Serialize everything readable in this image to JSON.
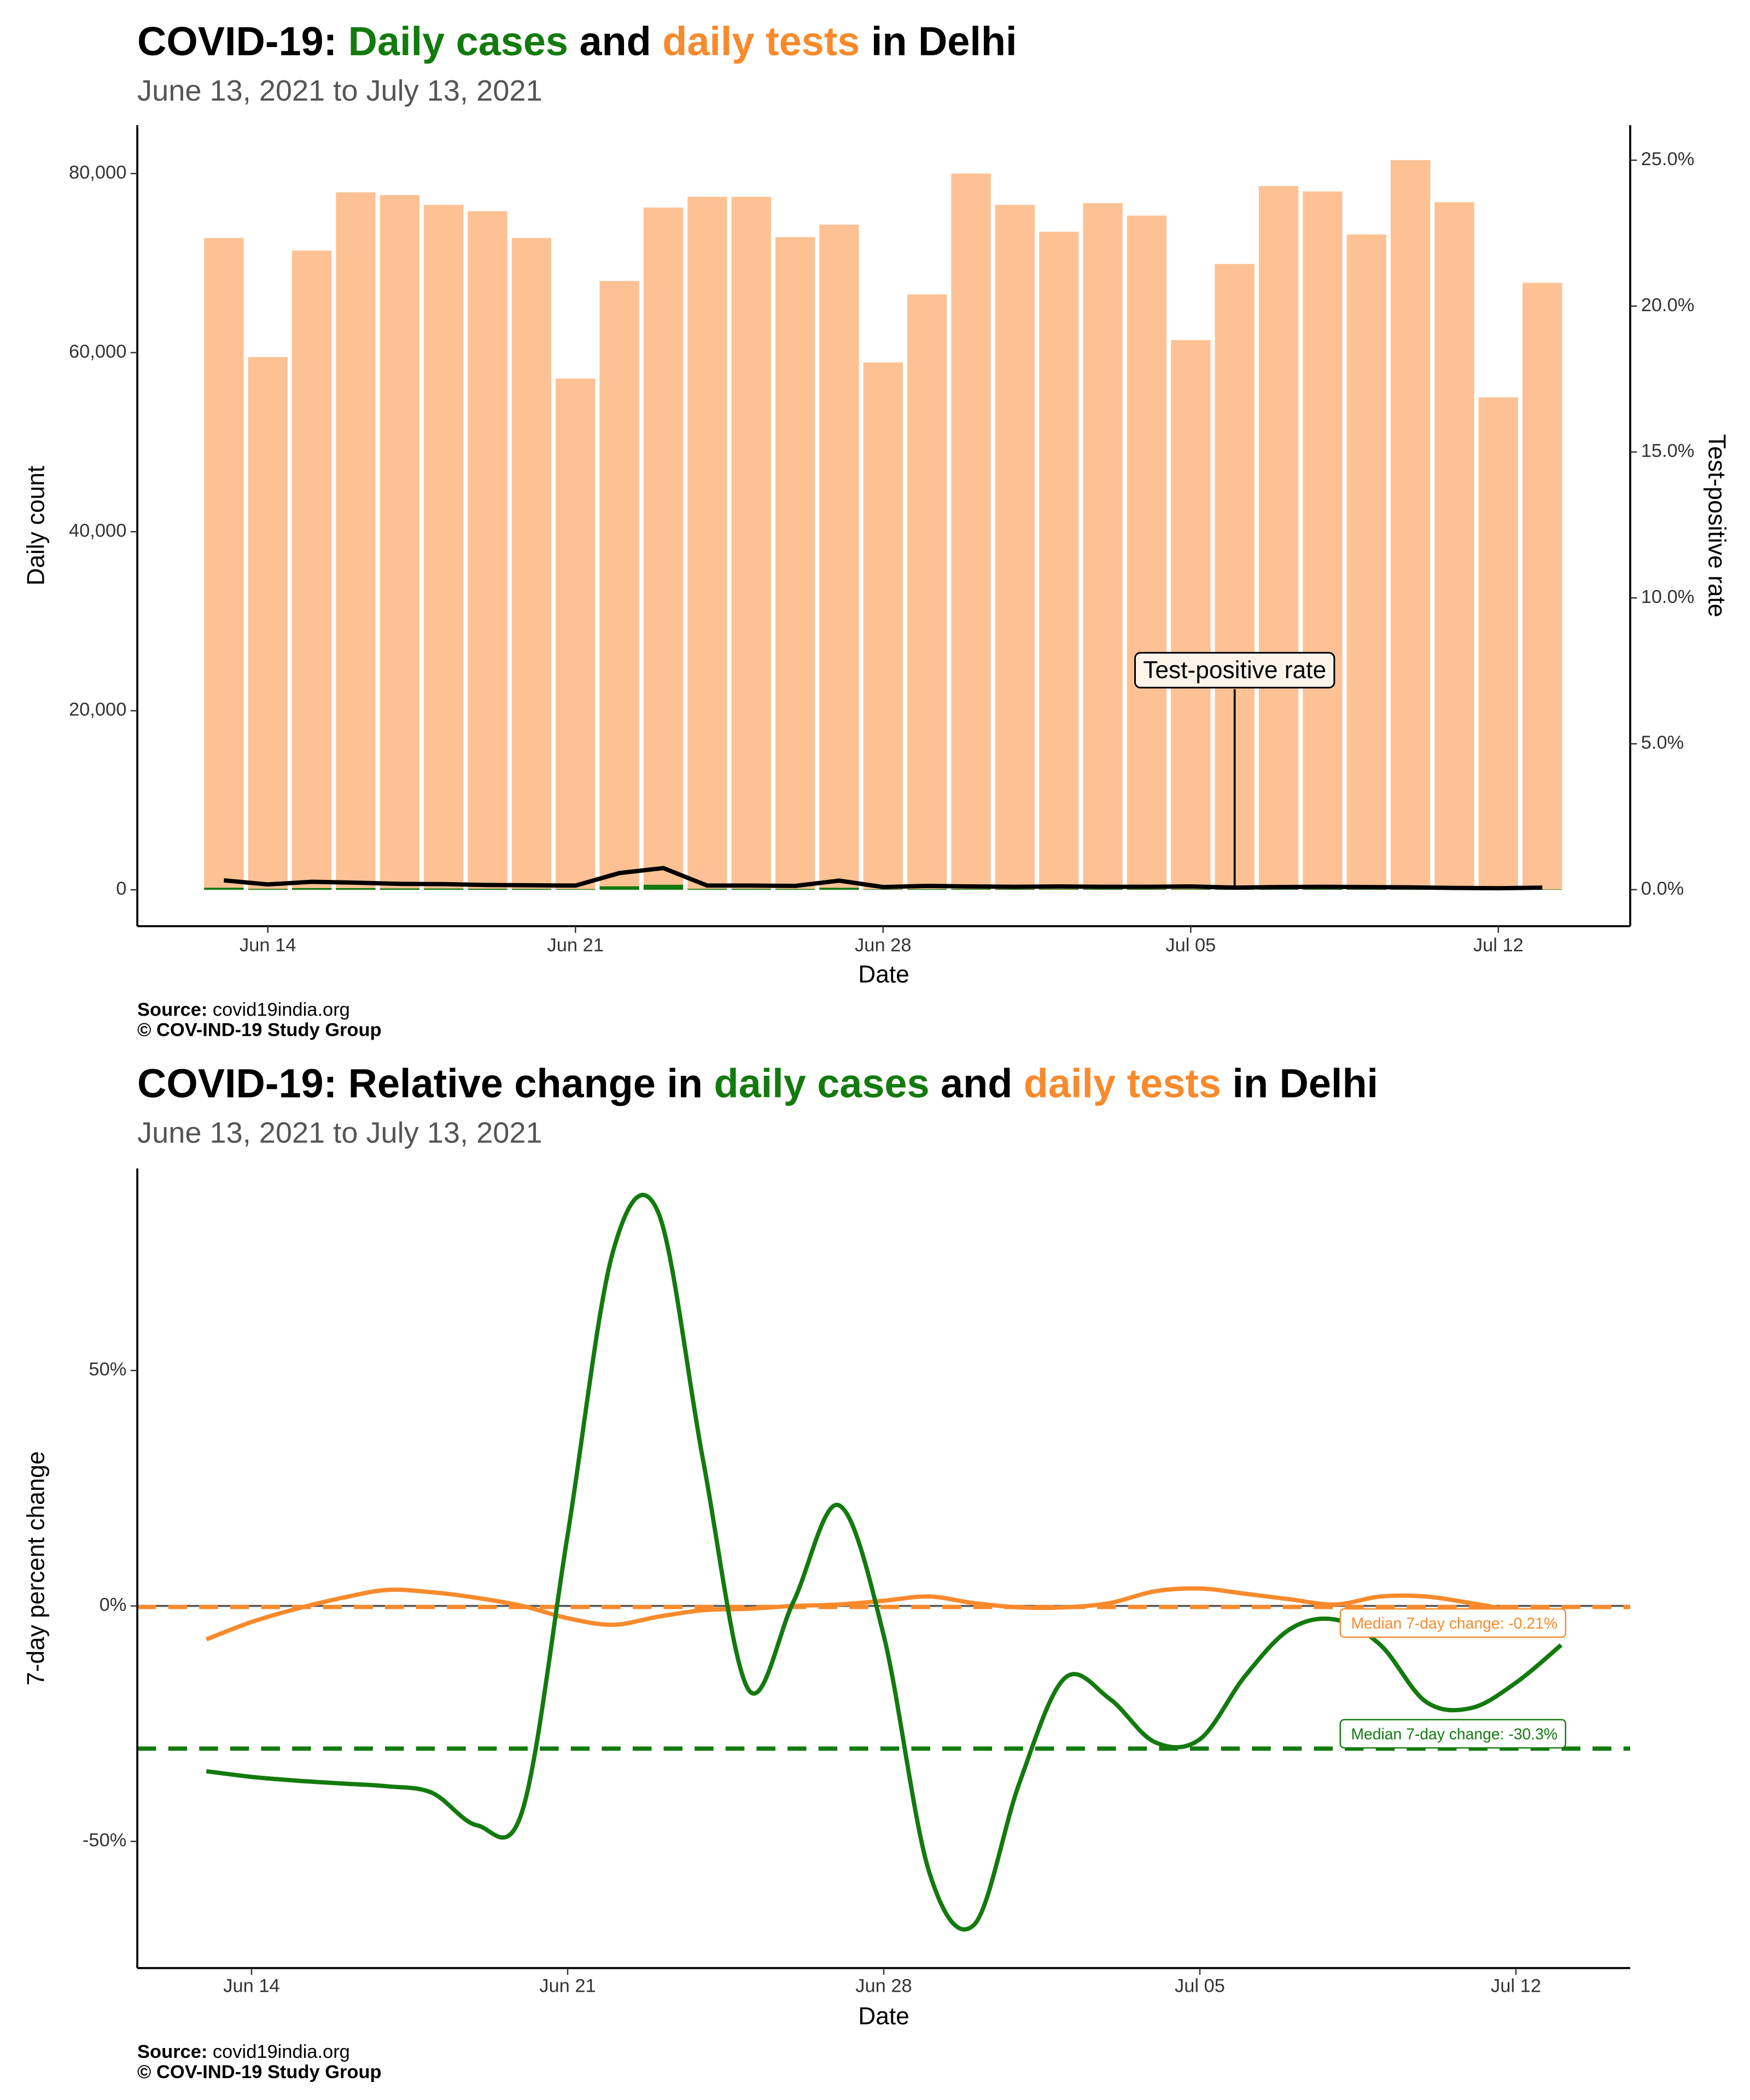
{
  "chart_data": [
    {
      "type": "bar",
      "title": [
        {
          "text": "COVID-19: ",
          "color": "#000000"
        },
        {
          "text": "Daily cases",
          "color": "#137a0e"
        },
        {
          "text": " and ",
          "color": "#000000"
        },
        {
          "text": "daily tests",
          "color": "#f88a2c"
        },
        {
          "text": " in Delhi",
          "color": "#000000"
        }
      ],
      "subtitle": "June 13, 2021 to July 13, 2021",
      "x_label": "Date",
      "y_label": "Daily count",
      "y2_label": "Test-positive rate",
      "source_label": "Source:",
      "source": "covid19india.org",
      "credit": "© COV-IND-19 Study Group",
      "x": [
        "2021-06-13",
        "2021-06-14",
        "2021-06-15",
        "2021-06-16",
        "2021-06-17",
        "2021-06-18",
        "2021-06-19",
        "2021-06-20",
        "2021-06-21",
        "2021-06-22",
        "2021-06-23",
        "2021-06-24",
        "2021-06-25",
        "2021-06-26",
        "2021-06-27",
        "2021-06-28",
        "2021-06-29",
        "2021-06-30",
        "2021-07-01",
        "2021-07-02",
        "2021-07-03",
        "2021-07-04",
        "2021-07-05",
        "2021-07-06",
        "2021-07-07",
        "2021-07-08",
        "2021-07-09",
        "2021-07-10",
        "2021-07-11",
        "2021-07-12",
        "2021-07-13"
      ],
      "xlim": [
        "2021-06-11T00:43Z",
        "2021-07-15T00:00Z"
      ],
      "xticks": [
        {
          "value": "2021-06-14",
          "label": "Jun 14"
        },
        {
          "value": "2021-06-21",
          "label": "Jun 21"
        },
        {
          "value": "2021-06-28",
          "label": "Jun 28"
        },
        {
          "value": "2021-07-05",
          "label": "Jul 05"
        },
        {
          "value": "2021-07-12",
          "label": "Jul 12"
        }
      ],
      "ylim": [
        -4060,
        85400
      ],
      "yticks": [
        0,
        {
          "value": 20000,
          "label": "20,000"
        },
        {
          "value": 40000,
          "label": "40,000"
        },
        {
          "value": 60000,
          "label": "60,000"
        },
        {
          "value": 80000,
          "label": "80,000"
        }
      ],
      "y2lim": [
        -1.25,
        26.2
      ],
      "y2ticks": [
        {
          "value": 0,
          "label": "0.0%"
        },
        {
          "value": 5,
          "label": "5.0%"
        },
        {
          "value": 10,
          "label": "10.0%"
        },
        {
          "value": 15,
          "label": "15.0%"
        },
        {
          "value": 20,
          "label": "20.0%"
        },
        {
          "value": 25,
          "label": "25.0%"
        }
      ],
      "series": [
        {
          "type": "bar",
          "color": "#fdc193",
          "values": [
            72800,
            59500,
            71400,
            77900,
            77600,
            76500,
            75800,
            72800,
            57100,
            68000,
            76200,
            77400,
            77400,
            72900,
            74300,
            58900,
            66500,
            80000,
            76500,
            73500,
            76700,
            75300,
            61400,
            69900,
            78600,
            78000,
            73200,
            81500,
            76800,
            55000,
            67800
          ]
        },
        {
          "type": "bar",
          "color": "#137a0e",
          "values": [
            233,
            107,
            193,
            187,
            155,
            145,
            121,
            109,
            80,
            388,
            564,
            108,
            108,
            95,
            230,
            53,
            86,
            88,
            77,
            81,
            77,
            75,
            68,
            49,
            71,
            78,
            66,
            65,
            46,
            28,
            47
          ]
        },
        {
          "type": "line",
          "axis": "y2",
          "color": "#000000",
          "values": [
            0.32,
            0.18,
            0.27,
            0.24,
            0.2,
            0.19,
            0.16,
            0.15,
            0.14,
            0.57,
            0.74,
            0.14,
            0.14,
            0.13,
            0.31,
            0.09,
            0.13,
            0.11,
            0.1,
            0.11,
            0.1,
            0.1,
            0.11,
            0.07,
            0.09,
            0.1,
            0.09,
            0.08,
            0.06,
            0.05,
            0.07
          ]
        }
      ],
      "annotation": {
        "text": "Test-positive rate",
        "x": "2021-07-06"
      }
    },
    {
      "type": "line",
      "title": [
        {
          "text": "COVID-19: Relative change in ",
          "color": "#000000"
        },
        {
          "text": "daily cases",
          "color": "#137a0e"
        },
        {
          "text": " and ",
          "color": "#000000"
        },
        {
          "text": "daily tests",
          "color": "#f88a2c"
        },
        {
          "text": " in Delhi",
          "color": "#000000"
        }
      ],
      "subtitle": "June 13, 2021 to July 13, 2021",
      "x_label": "Date",
      "y_label": "7-day percent change",
      "source_label": "Source:",
      "source": "covid19india.org",
      "credit": "© COV-IND-19 Study Group",
      "x": [
        "2021-06-13",
        "2021-06-14",
        "2021-06-15",
        "2021-06-16",
        "2021-06-17",
        "2021-06-18",
        "2021-06-19",
        "2021-06-20",
        "2021-06-21",
        "2021-06-22",
        "2021-06-23",
        "2021-06-24",
        "2021-06-25",
        "2021-06-26",
        "2021-06-27",
        "2021-06-28",
        "2021-06-29",
        "2021-06-30",
        "2021-07-01",
        "2021-07-02",
        "2021-07-03",
        "2021-07-04",
        "2021-07-05",
        "2021-07-06",
        "2021-07-07",
        "2021-07-08",
        "2021-07-09",
        "2021-07-10",
        "2021-07-11",
        "2021-07-12",
        "2021-07-13"
      ],
      "xlim": [
        "2021-06-11T11:17Z",
        "2021-07-14T12:43Z"
      ],
      "xticks": [
        {
          "value": "2021-06-14",
          "label": "Jun 14"
        },
        {
          "value": "2021-06-21",
          "label": "Jun 21"
        },
        {
          "value": "2021-06-28",
          "label": "Jun 28"
        },
        {
          "value": "2021-07-05",
          "label": "Jul 05"
        },
        {
          "value": "2021-07-12",
          "label": "Jul 12"
        }
      ],
      "ylim": [
        -76.9,
        92.9
      ],
      "yticks": [
        {
          "value": -50,
          "label": "-50%"
        },
        {
          "value": 0,
          "label": "0%"
        },
        {
          "value": 50,
          "label": "50%"
        }
      ],
      "zero_line": true,
      "series": [
        {
          "type": "line",
          "color": "#f88a2c",
          "values": [
            -7.1,
            -3.4,
            -0.6,
            1.7,
            3.4,
            2.9,
            1.7,
            0,
            -2.6,
            -4.0,
            -2.3,
            -0.9,
            -0.6,
            0,
            0.3,
            1.1,
            2.0,
            0.6,
            -0.3,
            -0.3,
            0.6,
            3.1,
            3.7,
            2.6,
            1.4,
            0.3,
            2.0,
            2.0,
            0.6,
            -1.1,
            -2.9
          ]
        },
        {
          "type": "line",
          "color": "#137a0e",
          "values": [
            -35.1,
            -36.3,
            -37.1,
            -37.7,
            -38.3,
            -39.7,
            -46.6,
            -43.4,
            15.1,
            75.1,
            83.7,
            30.9,
            -17.7,
            0.9,
            21.4,
            -6.3,
            -56.3,
            -67.7,
            -37.7,
            -15.4,
            -19.7,
            -28.9,
            -28.3,
            -14.9,
            -4.9,
            -2.9,
            -8.3,
            -20.3,
            -21.7,
            -16.3,
            -8.3
          ]
        }
      ],
      "reference_lines": [
        {
          "value": -0.21,
          "label": "Median 7-day change: -0.21%",
          "color": "#f88a2c"
        },
        {
          "value": -30.3,
          "label": "Median 7-day change: -30.3%",
          "color": "#137a0e"
        }
      ]
    }
  ]
}
